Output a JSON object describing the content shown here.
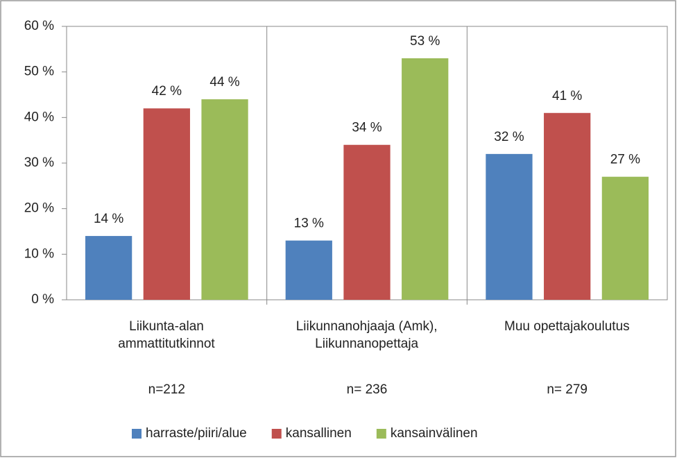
{
  "chart_data": {
    "type": "bar",
    "categories": [
      "Liikunta-alan\nammattitutkinnot",
      "Liikunnanohjaaja (Amk),\nLiikunnanopettaja",
      "Muu opettajakoulutus"
    ],
    "sample_sizes": [
      "n=212",
      "n= 236",
      "n= 279"
    ],
    "series": [
      {
        "name": "harraste/piiri/alue",
        "color": "#4f81bd",
        "values": [
          14,
          13,
          32
        ],
        "value_labels": [
          "14 %",
          "13 %",
          "32 %"
        ]
      },
      {
        "name": "kansallinen",
        "color": "#c0504d",
        "values": [
          42,
          34,
          41
        ],
        "value_labels": [
          "42 %",
          "34 %",
          "41 %"
        ]
      },
      {
        "name": "kansainvälinen",
        "color": "#9bbb59",
        "values": [
          44,
          53,
          27
        ],
        "value_labels": [
          "44 %",
          "53 %",
          "27 %"
        ]
      }
    ],
    "ylim": [
      0,
      60
    ],
    "yticks": [
      {
        "value": 0,
        "label": "0 %"
      },
      {
        "value": 10,
        "label": "10 %"
      },
      {
        "value": 20,
        "label": "20 %"
      },
      {
        "value": 30,
        "label": "30 %"
      },
      {
        "value": 40,
        "label": "40 %"
      },
      {
        "value": 50,
        "label": "50 %"
      },
      {
        "value": 60,
        "label": "60 %"
      }
    ],
    "grid": false,
    "legend": "bottom"
  }
}
